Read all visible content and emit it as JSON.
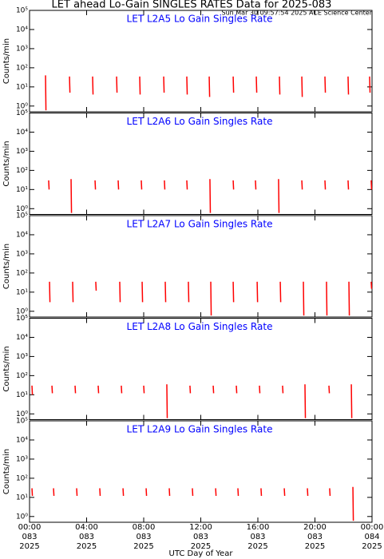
{
  "header": {
    "title": "LET ahead Lo-Gain SINGLES RATES Data for 2025-083",
    "subtitle": "Sun Mar 30 09:57:54 2025 ACE Science Center"
  },
  "chart_data": [
    {
      "type": "line",
      "title": "LET L2A5 Lo Gain Singles Rate",
      "ylabel": "Counts/min",
      "log_y": true,
      "xlim": [
        0,
        24
      ],
      "xticks": [
        0,
        4,
        8,
        12,
        16,
        20,
        24
      ],
      "ylim": [
        0.5,
        100000
      ],
      "yticks": [
        {
          "value": 1,
          "label": "10⁰"
        },
        {
          "value": 10,
          "label": "10¹"
        },
        {
          "value": 100,
          "label": "10²"
        },
        {
          "value": 1000,
          "label": "10³"
        },
        {
          "value": 10000,
          "label": "10⁴"
        },
        {
          "value": 100000,
          "label": "10⁵"
        }
      ],
      "series": [
        {
          "color": "#ff0000",
          "x": [
            1.12,
            1.15,
            null,
            2.8,
            2.83,
            null,
            4.42,
            4.45,
            null,
            6.1,
            6.13,
            null,
            7.72,
            7.75,
            null,
            9.4,
            9.43,
            null,
            11.02,
            11.05,
            null,
            12.59,
            12.62,
            null,
            14.27,
            14.3,
            null,
            15.89,
            15.92,
            null,
            17.51,
            17.54,
            null,
            19.08,
            19.11,
            null,
            20.7,
            20.73,
            null,
            22.32,
            22.35,
            null,
            23.83,
            23.86
          ],
          "values": [
            40,
            0.6,
            null,
            35,
            5,
            null,
            35,
            4,
            null,
            35,
            5,
            null,
            35,
            4,
            null,
            35,
            5,
            null,
            35,
            4,
            null,
            35,
            3,
            null,
            35,
            5,
            null,
            35,
            5,
            null,
            35,
            4,
            null,
            35,
            3,
            null,
            35,
            5,
            null,
            35,
            4,
            null,
            35,
            5
          ]
        }
      ]
    },
    {
      "type": "line",
      "title": "LET L2A6 Lo Gain Singles Rate",
      "ylabel": "Counts/min",
      "log_y": true,
      "xlim": [
        0,
        24
      ],
      "xticks": [
        0,
        4,
        8,
        12,
        16,
        20,
        24
      ],
      "ylim": [
        0.5,
        100000
      ],
      "yticks": [
        {
          "value": 1,
          "label": "10⁰"
        },
        {
          "value": 10,
          "label": "10¹"
        },
        {
          "value": 100,
          "label": "10²"
        },
        {
          "value": 1000,
          "label": "10³"
        },
        {
          "value": 10000,
          "label": "10⁴"
        },
        {
          "value": 100000,
          "label": "10⁵"
        }
      ],
      "series": [
        {
          "color": "#ff0000",
          "x": [
            1.34,
            1.37,
            null,
            2.91,
            2.94,
            null,
            4.59,
            4.62,
            null,
            6.21,
            6.24,
            null,
            7.83,
            7.86,
            null,
            9.45,
            9.48,
            null,
            11.02,
            11.05,
            null,
            12.64,
            12.67,
            null,
            14.27,
            14.3,
            null,
            15.83,
            15.86,
            null,
            17.45,
            17.48,
            null,
            19.08,
            19.11,
            null,
            20.7,
            20.73,
            null,
            22.32,
            22.35,
            null,
            23.94,
            23.97
          ],
          "values": [
            30,
            10,
            null,
            35,
            0.6,
            null,
            30,
            10,
            null,
            30,
            10,
            null,
            30,
            10,
            null,
            30,
            10,
            null,
            30,
            10,
            null,
            35,
            0.6,
            null,
            30,
            10,
            null,
            30,
            10,
            null,
            35,
            0.6,
            null,
            30,
            10,
            null,
            30,
            10,
            null,
            30,
            10,
            null,
            30,
            10
          ]
        }
      ]
    },
    {
      "type": "line",
      "title": "LET L2A7 Lo Gain Singles Rate",
      "ylabel": "Counts/min",
      "log_y": true,
      "xlim": [
        0,
        24
      ],
      "xticks": [
        0,
        4,
        8,
        12,
        16,
        20,
        24
      ],
      "ylim": [
        0.5,
        100000
      ],
      "yticks": [
        {
          "value": 1,
          "label": "10⁰"
        },
        {
          "value": 10,
          "label": "10¹"
        },
        {
          "value": 100,
          "label": "10²"
        },
        {
          "value": 1000,
          "label": "10³"
        },
        {
          "value": 10000,
          "label": "10⁴"
        },
        {
          "value": 100000,
          "label": "10⁵"
        }
      ],
      "series": [
        {
          "color": "#ff0000",
          "x": [
            1.4,
            1.43,
            null,
            3.02,
            3.05,
            null,
            4.64,
            4.67,
            null,
            6.32,
            6.35,
            null,
            7.89,
            7.92,
            null,
            9.51,
            9.54,
            null,
            11.13,
            11.16,
            null,
            12.7,
            12.73,
            null,
            14.27,
            14.3,
            null,
            15.95,
            15.98,
            null,
            17.57,
            17.6,
            null,
            19.19,
            19.22,
            null,
            20.81,
            20.84,
            null,
            22.38,
            22.41,
            null,
            23.94,
            23.97
          ],
          "values": [
            35,
            3,
            null,
            35,
            3,
            null,
            35,
            12,
            null,
            35,
            3,
            null,
            35,
            3,
            null,
            35,
            3,
            null,
            35,
            3,
            null,
            35,
            0.6,
            null,
            35,
            3,
            null,
            35,
            3,
            null,
            35,
            3,
            null,
            35,
            0.6,
            null,
            35,
            0.6,
            null,
            35,
            0.6,
            null,
            35,
            15
          ]
        }
      ]
    },
    {
      "type": "line",
      "title": "LET L2A8 Lo Gain Singles Rate",
      "ylabel": "Counts/min",
      "log_y": true,
      "xlim": [
        0,
        24
      ],
      "xticks": [
        0,
        4,
        8,
        12,
        16,
        20,
        24
      ],
      "ylim": [
        0.5,
        100000
      ],
      "yticks": [
        {
          "value": 1,
          "label": "10⁰"
        },
        {
          "value": 10,
          "label": "10¹"
        },
        {
          "value": 100,
          "label": "10²"
        },
        {
          "value": 1000,
          "label": "10³"
        },
        {
          "value": 10000,
          "label": "10⁴"
        },
        {
          "value": 100000,
          "label": "10⁵"
        }
      ],
      "series": [
        {
          "color": "#ff0000",
          "x": [
            0.17,
            0.2,
            null,
            1.57,
            1.6,
            null,
            3.19,
            3.22,
            null,
            4.81,
            4.84,
            null,
            6.43,
            6.46,
            null,
            8.0,
            8.03,
            null,
            9.62,
            9.65,
            null,
            11.24,
            11.27,
            null,
            12.87,
            12.9,
            null,
            14.49,
            14.52,
            null,
            16.11,
            16.14,
            null,
            17.73,
            17.76,
            null,
            19.3,
            19.33,
            null,
            20.98,
            21.01,
            null,
            22.55,
            22.58
          ],
          "values": [
            30,
            10,
            null,
            30,
            12,
            null,
            30,
            12,
            null,
            30,
            12,
            null,
            30,
            12,
            null,
            30,
            12,
            null,
            35,
            0.6,
            null,
            30,
            12,
            null,
            30,
            12,
            null,
            30,
            12,
            null,
            30,
            12,
            null,
            30,
            12,
            null,
            35,
            0.6,
            null,
            30,
            12,
            null,
            35,
            0.6
          ]
        }
      ]
    },
    {
      "type": "line",
      "title": "LET L2A9 Lo Gain Singles Rate",
      "ylabel": "Counts/min",
      "log_y": true,
      "xlim": [
        0,
        24
      ],
      "ylim": [
        0.5,
        100000
      ],
      "xlabel": "UTC Day of Year",
      "xticks": [
        {
          "value": 0,
          "label": [
            "00:00",
            "083",
            "2025"
          ]
        },
        {
          "value": 4,
          "label": [
            "04:00",
            "083",
            "2025"
          ]
        },
        {
          "value": 8,
          "label": [
            "08:00",
            "083",
            "2025"
          ]
        },
        {
          "value": 12,
          "label": [
            "12:00",
            "083",
            "2025"
          ]
        },
        {
          "value": 16,
          "label": [
            "16:00",
            "083",
            "2025"
          ]
        },
        {
          "value": 20,
          "label": [
            "20:00",
            "083",
            "2025"
          ]
        },
        {
          "value": 24,
          "label": [
            "00:00",
            "084",
            "2025"
          ]
        }
      ],
      "yticks": [
        {
          "value": 1,
          "label": "10⁰"
        },
        {
          "value": 10,
          "label": "10¹"
        },
        {
          "value": 100,
          "label": "10²"
        },
        {
          "value": 1000,
          "label": "10³"
        },
        {
          "value": 10000,
          "label": "10⁴"
        },
        {
          "value": 100000,
          "label": "10⁵"
        }
      ],
      "series": [
        {
          "color": "#ff0000",
          "x": [
            0.17,
            0.2,
            null,
            1.68,
            1.71,
            null,
            3.3,
            3.33,
            null,
            4.92,
            4.95,
            null,
            6.55,
            6.58,
            null,
            8.17,
            8.2,
            null,
            9.79,
            9.82,
            null,
            11.41,
            11.44,
            null,
            13.04,
            13.07,
            null,
            14.6,
            14.63,
            null,
            16.22,
            16.25,
            null,
            17.85,
            17.88,
            null,
            19.47,
            19.5,
            null,
            21.03,
            21.06,
            null,
            22.66,
            22.69
          ],
          "values": [
            30,
            12,
            null,
            30,
            12,
            null,
            30,
            12,
            null,
            30,
            12,
            null,
            30,
            12,
            null,
            30,
            12,
            null,
            30,
            12,
            null,
            30,
            12,
            null,
            30,
            12,
            null,
            30,
            12,
            null,
            30,
            12,
            null,
            30,
            12,
            null,
            30,
            12,
            null,
            30,
            12,
            null,
            35,
            0.6
          ]
        }
      ]
    }
  ]
}
